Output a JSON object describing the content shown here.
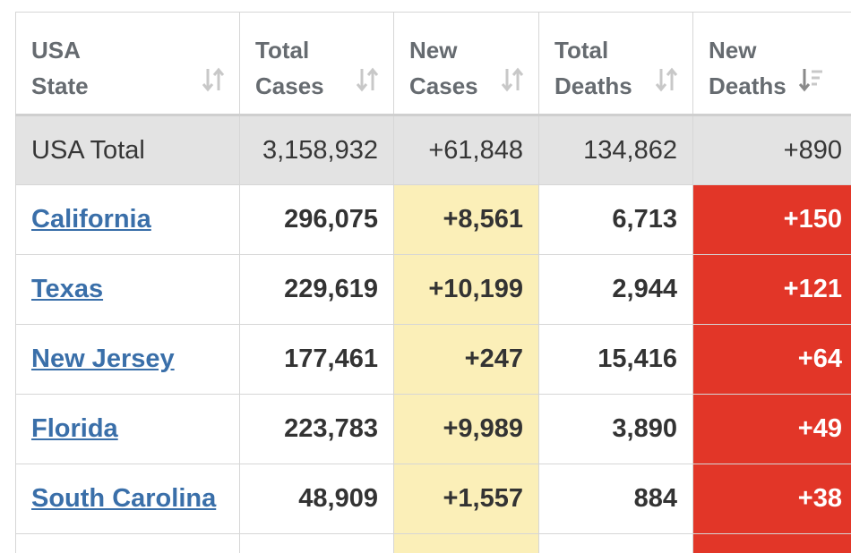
{
  "headers": [
    {
      "label": "USA\nState",
      "sort_icon": "sort-arrows-icon"
    },
    {
      "label": "Total\nCases",
      "sort_icon": "sort-arrows-icon"
    },
    {
      "label": "New\nCases",
      "sort_icon": "sort-arrows-icon"
    },
    {
      "label": "Total\nDeaths",
      "sort_icon": "sort-arrows-icon"
    },
    {
      "label": "New\nDeaths",
      "sort_icon": "sort-desc-icon"
    }
  ],
  "total_row": {
    "state": "USA Total",
    "total_cases": "3,158,932",
    "new_cases": "+61,848",
    "total_deaths": "134,862",
    "new_deaths": "+890"
  },
  "rows": [
    {
      "state": "California",
      "total_cases": "296,075",
      "new_cases": "+8,561",
      "total_deaths": "6,713",
      "new_deaths": "+150"
    },
    {
      "state": "Texas",
      "total_cases": "229,619",
      "new_cases": "+10,199",
      "total_deaths": "2,944",
      "new_deaths": "+121"
    },
    {
      "state": "New Jersey",
      "total_cases": "177,461",
      "new_cases": "+247",
      "total_deaths": "15,416",
      "new_deaths": "+64"
    },
    {
      "state": "Florida",
      "total_cases": "223,783",
      "new_cases": "+9,989",
      "total_deaths": "3,890",
      "new_deaths": "+49"
    },
    {
      "state": "South Carolina",
      "total_cases": "48,909",
      "new_cases": "+1,557",
      "total_deaths": "884",
      "new_deaths": "+38"
    }
  ],
  "colors": {
    "link": "#3a6fa9",
    "new_cases_bg": "#fbefb8",
    "new_deaths_bg": "#e23628",
    "total_row_bg": "#e3e3e3",
    "header_text": "#666b70"
  }
}
